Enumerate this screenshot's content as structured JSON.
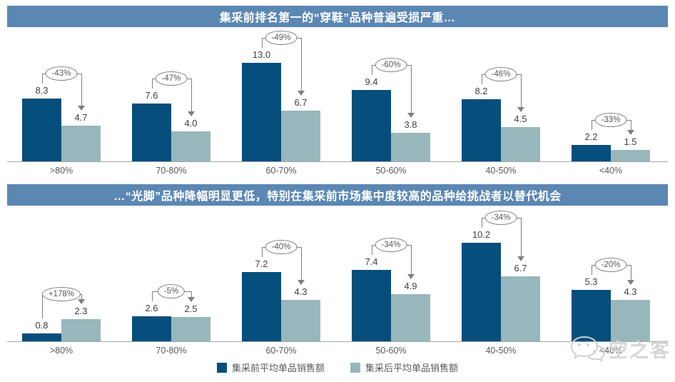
{
  "colors": {
    "header_bg": "#5b87b3",
    "pre_bar": "#064e7c",
    "post_bar": "#97b7bc",
    "annotation_line": "#7f7f7f",
    "watermark_gray": "#d7d7d7"
  },
  "chart_data": [
    {
      "type": "bar",
      "title": "集采前排名第一的“穿鞋”品种普遍受损严重…",
      "categories": [
        ">80%",
        "70-80%",
        "60-70%",
        "50-60%",
        "40-50%",
        "<40%"
      ],
      "series": [
        {
          "name": "集采前平均单品销售额",
          "color": "#064e7c",
          "values": [
            8.3,
            7.6,
            13.0,
            9.4,
            8.2,
            2.2
          ]
        },
        {
          "name": "集采后平均单品销售额",
          "color": "#97b7bc",
          "values": [
            4.7,
            4.0,
            6.7,
            3.8,
            4.5,
            1.5
          ]
        }
      ],
      "annotations": [
        "-43%",
        "-47%",
        "-49%",
        "-60%",
        "-46%",
        "-33%"
      ],
      "xlabel": "",
      "ylabel": "",
      "ylim": [
        0,
        14
      ],
      "grid": false,
      "value_labels": true,
      "legend_position": "shared-bottom"
    },
    {
      "type": "bar",
      "title": "…“光脚”品种降幅明显更低，特别在集采前市场集中度较高的品种给挑战者以替代机会",
      "categories": [
        ">80%",
        "70-80%",
        "60-70%",
        "50-60%",
        "40-50%",
        "<40%"
      ],
      "series": [
        {
          "name": "集采前平均单品销售额",
          "color": "#064e7c",
          "values": [
            0.8,
            2.6,
            7.2,
            7.4,
            10.2,
            5.3
          ]
        },
        {
          "name": "集采后平均单品销售额",
          "color": "#97b7bc",
          "values": [
            2.3,
            2.5,
            4.3,
            4.9,
            6.7,
            4.3
          ]
        }
      ],
      "annotations": [
        "+178%",
        "-5%",
        "-40%",
        "-34%",
        "-34%",
        "-20%"
      ],
      "xlabel": "",
      "ylabel": "",
      "ylim": [
        0,
        11
      ],
      "grid": false,
      "value_labels": true,
      "legend_position": "shared-bottom"
    }
  ],
  "legend": {
    "items": [
      {
        "label": "集采前平均单品销售额",
        "color": "#064e7c"
      },
      {
        "label": "集采后平均单品销售额",
        "color": "#97b7bc"
      }
    ]
  },
  "watermark": {
    "text": "空之客"
  }
}
